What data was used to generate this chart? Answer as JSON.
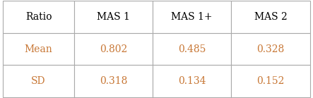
{
  "col_headers": [
    "Ratio",
    "MAS 1",
    "MAS 1+",
    "MAS 2"
  ],
  "rows": [
    [
      "Mean",
      "0.802",
      "0.485",
      "0.328"
    ],
    [
      "SD",
      "0.318",
      "0.134",
      "0.152"
    ]
  ],
  "header_text_color": "#000000",
  "data_text_color": "#c87837",
  "bg_color": "#ffffff",
  "border_color": "#aaaaaa",
  "font_size": 10,
  "fig_width": 4.43,
  "fig_height": 1.39,
  "dpi": 100
}
